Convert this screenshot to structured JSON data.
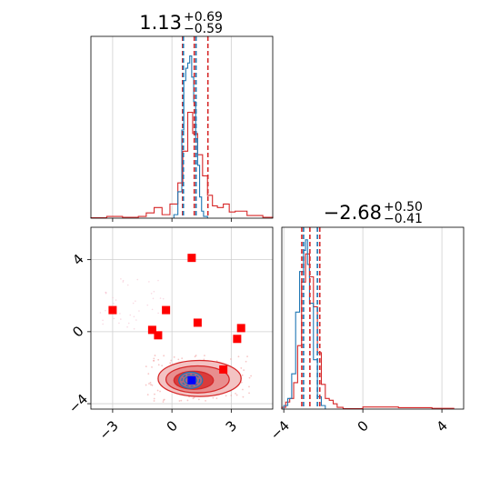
{
  "colors": {
    "red": "#d62728",
    "blue": "#1f77b4",
    "marker_red": "#ff0000",
    "marker_blue": "#0000ff",
    "grid": "#cfcfcf",
    "fill_outer": "#f3c3c3",
    "fill_mid": "#e88e8e",
    "fill_inner": "#d83c3c"
  },
  "chart_data": [
    {
      "type": "histogram",
      "panel": "top-left",
      "param": "p1",
      "title": {
        "value": "1.13",
        "plus": "+0.69",
        "minus": "−0.59"
      },
      "xlim": [
        -4.1,
        5.1
      ],
      "grid": true,
      "quantile_lines_red": [
        0.54,
        1.13,
        1.82
      ],
      "quantile_lines_blue": [
        0.58,
        1.22
      ],
      "series": [
        {
          "color": "red",
          "bins": [
            [
              -4.1,
              -3.3,
              0.002
            ],
            [
              -3.3,
              -2.5,
              0.01
            ],
            [
              -2.5,
              -1.7,
              0.005
            ],
            [
              -1.7,
              -1.3,
              0.01
            ],
            [
              -1.3,
              -0.9,
              0.03
            ],
            [
              -0.9,
              -0.5,
              0.06
            ],
            [
              -0.5,
              -0.1,
              0.02
            ],
            [
              -0.1,
              0.3,
              0.08
            ],
            [
              0.3,
              0.55,
              0.2
            ],
            [
              0.55,
              0.8,
              0.38
            ],
            [
              0.8,
              1.05,
              0.6
            ],
            [
              1.05,
              1.3,
              0.48
            ],
            [
              1.3,
              1.55,
              0.36
            ],
            [
              1.55,
              1.8,
              0.24
            ],
            [
              1.8,
              2.05,
              0.13
            ],
            [
              2.05,
              2.3,
              0.07
            ],
            [
              2.3,
              2.6,
              0.06
            ],
            [
              2.6,
              2.9,
              0.08
            ],
            [
              2.9,
              3.2,
              0.035
            ],
            [
              3.2,
              3.8,
              0.04
            ],
            [
              3.8,
              4.6,
              0.015
            ],
            [
              4.6,
              5.1,
              0.005
            ]
          ]
        },
        {
          "color": "blue",
          "bins": [
            [
              0.1,
              0.3,
              0.02
            ],
            [
              0.3,
              0.5,
              0.15
            ],
            [
              0.5,
              0.6,
              0.5
            ],
            [
              0.6,
              0.7,
              0.78
            ],
            [
              0.7,
              0.8,
              0.85
            ],
            [
              0.8,
              0.9,
              0.88
            ],
            [
              0.9,
              1.0,
              0.92
            ],
            [
              1.0,
              1.1,
              0.8
            ],
            [
              1.1,
              1.2,
              0.66
            ],
            [
              1.2,
              1.3,
              0.45
            ],
            [
              1.3,
              1.4,
              0.3
            ],
            [
              1.4,
              1.5,
              0.12
            ],
            [
              1.5,
              1.6,
              0.04
            ],
            [
              1.6,
              1.8,
              0.01
            ]
          ]
        }
      ]
    },
    {
      "type": "histogram",
      "panel": "bottom-right",
      "param": "p2",
      "title": {
        "value": "−2.68",
        "plus": "+0.50",
        "minus": "−0.41"
      },
      "xlim": [
        -4.1,
        5.1
      ],
      "xticks": [
        -4,
        0,
        4
      ],
      "grid": true,
      "quantile_lines_red": [
        -3.09,
        -2.68,
        -2.18
      ],
      "quantile_lines_blue": [
        -3.0,
        -2.3
      ],
      "series": [
        {
          "color": "red",
          "bins": [
            [
              -4.1,
              -3.9,
              0.01
            ],
            [
              -3.9,
              -3.7,
              0.04
            ],
            [
              -3.7,
              -3.5,
              0.06
            ],
            [
              -3.5,
              -3.3,
              0.15
            ],
            [
              -3.3,
              -3.1,
              0.36
            ],
            [
              -3.1,
              -2.9,
              0.72
            ],
            [
              -2.9,
              -2.7,
              0.88
            ],
            [
              -2.7,
              -2.5,
              0.75
            ],
            [
              -2.5,
              -2.3,
              0.58
            ],
            [
              -2.3,
              -2.1,
              0.32
            ],
            [
              -2.1,
              -1.9,
              0.14
            ],
            [
              -1.9,
              -1.7,
              0.06
            ],
            [
              -1.7,
              -1.5,
              0.05
            ],
            [
              -1.5,
              -1.3,
              0.03
            ],
            [
              -1.3,
              -1.0,
              0.01
            ],
            [
              -1.0,
              0.0,
              0.002
            ],
            [
              0.0,
              1.8,
              0.012
            ],
            [
              1.8,
              3.5,
              0.008
            ],
            [
              3.5,
              4.6,
              0.004
            ]
          ]
        },
        {
          "color": "blue",
          "bins": [
            [
              -4.0,
              -3.8,
              0.02
            ],
            [
              -3.8,
              -3.6,
              0.06
            ],
            [
              -3.6,
              -3.4,
              0.2
            ],
            [
              -3.4,
              -3.2,
              0.55
            ],
            [
              -3.2,
              -3.0,
              0.78
            ],
            [
              -3.0,
              -2.9,
              0.9
            ],
            [
              -2.9,
              -2.8,
              0.96
            ],
            [
              -2.8,
              -2.7,
              0.82
            ],
            [
              -2.7,
              -2.5,
              0.6
            ],
            [
              -2.5,
              -2.3,
              0.28
            ],
            [
              -2.3,
              -2.1,
              0.07
            ],
            [
              -2.1,
              -1.9,
              0.02
            ]
          ]
        }
      ]
    },
    {
      "type": "scatter",
      "panel": "bottom-left",
      "x_param": "p1",
      "y_param": "p2",
      "xlim": [
        -4.1,
        5.1
      ],
      "ylim": [
        -4.3,
        5.8
      ],
      "xticks": [
        -3,
        0,
        3
      ],
      "yticks": [
        -4,
        0,
        4
      ],
      "grid": true,
      "red_squares": [
        [
          -3.0,
          1.2
        ],
        [
          -1.0,
          0.1
        ],
        [
          -0.7,
          -0.2
        ],
        [
          -0.3,
          1.2
        ],
        [
          1.0,
          4.1
        ],
        [
          1.3,
          0.5
        ],
        [
          3.5,
          0.2
        ],
        [
          3.3,
          -0.4
        ],
        [
          2.6,
          -2.1
        ]
      ],
      "blue_square": [
        1.0,
        -2.7
      ],
      "red_contours": [
        {
          "cx": 1.4,
          "cy": -2.6,
          "rx": 2.1,
          "ry": 1.0,
          "fill": "fill_outer"
        },
        {
          "cx": 1.3,
          "cy": -2.65,
          "rx": 1.6,
          "ry": 0.75,
          "fill": "fill_mid"
        },
        {
          "cx": 1.1,
          "cy": -2.7,
          "rx": 1.0,
          "ry": 0.5,
          "fill": "fill_inner"
        }
      ],
      "blue_contours": [
        {
          "cx": 0.95,
          "cy": -2.7,
          "rx": 0.6,
          "ry": 0.45
        },
        {
          "cx": 0.95,
          "cy": -2.7,
          "rx": 0.45,
          "ry": 0.33
        },
        {
          "cx": 0.95,
          "cy": -2.7,
          "rx": 0.3,
          "ry": 0.22
        },
        {
          "cx": 0.95,
          "cy": -2.7,
          "rx": 0.15,
          "ry": 0.11
        }
      ]
    }
  ]
}
